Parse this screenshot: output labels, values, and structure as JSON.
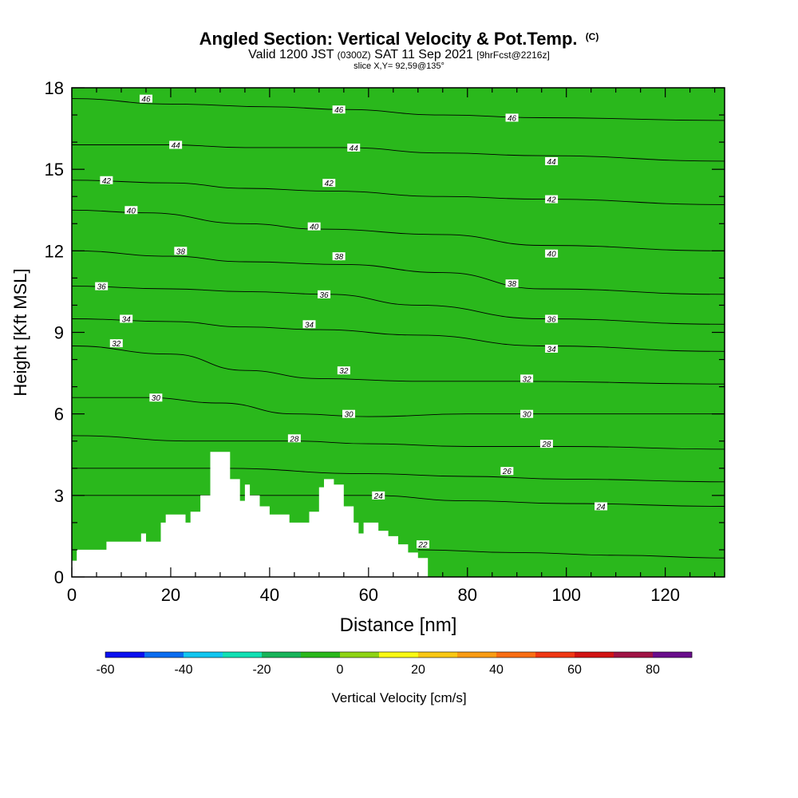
{
  "header": {
    "title": "Angled Section: Vertical Velocity & Pot.Temp.",
    "copyright": "(C)",
    "valid_prefix": "Valid 1200 JST",
    "valid_utc": "(0300Z)",
    "valid_date": "SAT 11 Sep 2021",
    "forecast": "[9hrFcst@2216z]",
    "slice": "slice X,Y= 92,59@135°"
  },
  "chart_data": {
    "type": "heatmap",
    "title": "Angled Section: Vertical Velocity & Pot.Temp.",
    "xlabel": "Distance [nm]",
    "ylabel": "Height [Kft MSL]",
    "xlim": [
      0,
      132
    ],
    "ylim": [
      0,
      18
    ],
    "x_ticks": [
      0,
      20,
      40,
      60,
      80,
      100,
      120
    ],
    "y_ticks": [
      0,
      3,
      6,
      9,
      12,
      15,
      18
    ],
    "colorbar": {
      "label": "Vertical Velocity [cm/s]",
      "tick_labels": [
        -60,
        -40,
        -20,
        0,
        20,
        40,
        60,
        80
      ],
      "levels": [
        -60,
        -50,
        -40,
        -30,
        -20,
        -10,
        0,
        10,
        20,
        30,
        40,
        50,
        60,
        70,
        80,
        90
      ],
      "colors": [
        "#0a10f0",
        "#0a6df0",
        "#12c6f0",
        "#12e0b4",
        "#18b45a",
        "#2ab81c",
        "#8ed414",
        "#fafa14",
        "#fac814",
        "#fa9c14",
        "#fa6e14",
        "#f03814",
        "#d21414",
        "#a01446",
        "#6a0e8c"
      ]
    },
    "theta_contours": [
      {
        "value": 22,
        "label": "22",
        "points": [
          [
            70,
            1.0
          ],
          [
            90,
            0.9
          ],
          [
            110,
            0.8
          ],
          [
            132,
            0.7
          ]
        ]
      },
      {
        "value": 24,
        "label": "24",
        "points": [
          [
            0,
            3.0
          ],
          [
            30,
            3.0
          ],
          [
            60,
            3.0
          ],
          [
            80,
            2.8
          ],
          [
            100,
            2.7
          ],
          [
            132,
            2.6
          ]
        ]
      },
      {
        "value": 26,
        "label": "26",
        "points": [
          [
            0,
            4.0
          ],
          [
            30,
            4.0
          ],
          [
            60,
            3.8
          ],
          [
            80,
            3.7
          ],
          [
            100,
            3.6
          ],
          [
            132,
            3.5
          ]
        ]
      },
      {
        "value": 28,
        "label": "28",
        "points": [
          [
            0,
            5.2
          ],
          [
            25,
            5.0
          ],
          [
            45,
            5.0
          ],
          [
            60,
            4.9
          ],
          [
            80,
            4.8
          ],
          [
            100,
            4.8
          ],
          [
            132,
            4.7
          ]
        ]
      },
      {
        "value": 30,
        "label": "30",
        "points": [
          [
            0,
            6.6
          ],
          [
            15,
            6.6
          ],
          [
            30,
            6.4
          ],
          [
            45,
            6.0
          ],
          [
            60,
            5.9
          ],
          [
            80,
            6.0
          ],
          [
            100,
            6.0
          ],
          [
            132,
            6.0
          ]
        ]
      },
      {
        "value": 32,
        "label": "32",
        "points": [
          [
            0,
            8.5
          ],
          [
            20,
            8.2
          ],
          [
            35,
            7.6
          ],
          [
            50,
            7.3
          ],
          [
            70,
            7.2
          ],
          [
            90,
            7.2
          ],
          [
            132,
            7.1
          ]
        ]
      },
      {
        "value": 34,
        "label": "34",
        "points": [
          [
            0,
            9.5
          ],
          [
            20,
            9.4
          ],
          [
            35,
            9.2
          ],
          [
            50,
            9.1
          ],
          [
            70,
            8.9
          ],
          [
            95,
            8.5
          ],
          [
            132,
            8.3
          ]
        ]
      },
      {
        "value": 36,
        "label": "36",
        "points": [
          [
            0,
            10.7
          ],
          [
            20,
            10.6
          ],
          [
            35,
            10.5
          ],
          [
            52,
            10.4
          ],
          [
            70,
            10.0
          ],
          [
            95,
            9.5
          ],
          [
            132,
            9.3
          ]
        ]
      },
      {
        "value": 38,
        "label": "38",
        "points": [
          [
            0,
            12.0
          ],
          [
            20,
            11.8
          ],
          [
            35,
            11.6
          ],
          [
            55,
            11.5
          ],
          [
            75,
            11.2
          ],
          [
            95,
            10.6
          ],
          [
            132,
            10.4
          ]
        ]
      },
      {
        "value": 40,
        "label": "40",
        "points": [
          [
            0,
            13.5
          ],
          [
            15,
            13.4
          ],
          [
            35,
            13.0
          ],
          [
            50,
            12.8
          ],
          [
            75,
            12.6
          ],
          [
            95,
            12.2
          ],
          [
            132,
            12.0
          ]
        ]
      },
      {
        "value": 42,
        "label": "42",
        "points": [
          [
            0,
            14.6
          ],
          [
            20,
            14.5
          ],
          [
            35,
            14.3
          ],
          [
            52,
            14.2
          ],
          [
            75,
            14.0
          ],
          [
            95,
            13.9
          ],
          [
            132,
            13.7
          ]
        ]
      },
      {
        "value": 44,
        "label": "44",
        "points": [
          [
            0,
            15.9
          ],
          [
            20,
            15.9
          ],
          [
            35,
            15.8
          ],
          [
            55,
            15.8
          ],
          [
            75,
            15.6
          ],
          [
            95,
            15.5
          ],
          [
            132,
            15.3
          ]
        ]
      },
      {
        "value": 46,
        "label": "46",
        "points": [
          [
            0,
            17.6
          ],
          [
            20,
            17.4
          ],
          [
            40,
            17.3
          ],
          [
            55,
            17.2
          ],
          [
            75,
            17.0
          ],
          [
            95,
            16.9
          ],
          [
            132,
            16.8
          ]
        ]
      }
    ],
    "theta_labels": [
      {
        "text": "46",
        "x": 15,
        "y": 17.6
      },
      {
        "text": "46",
        "x": 54,
        "y": 17.2
      },
      {
        "text": "46",
        "x": 89,
        "y": 16.9
      },
      {
        "text": "44",
        "x": 21,
        "y": 15.9
      },
      {
        "text": "44",
        "x": 57,
        "y": 15.8
      },
      {
        "text": "44",
        "x": 97,
        "y": 15.3
      },
      {
        "text": "42",
        "x": 7,
        "y": 14.6
      },
      {
        "text": "42",
        "x": 52,
        "y": 14.5
      },
      {
        "text": "42",
        "x": 97,
        "y": 13.9
      },
      {
        "text": "40",
        "x": 12,
        "y": 13.5
      },
      {
        "text": "40",
        "x": 49,
        "y": 12.9
      },
      {
        "text": "40",
        "x": 97,
        "y": 11.9
      },
      {
        "text": "38",
        "x": 22,
        "y": 12.0
      },
      {
        "text": "38",
        "x": 54,
        "y": 11.8
      },
      {
        "text": "38",
        "x": 89,
        "y": 10.8
      },
      {
        "text": "36",
        "x": 6,
        "y": 10.7
      },
      {
        "text": "36",
        "x": 51,
        "y": 10.4
      },
      {
        "text": "36",
        "x": 97,
        "y": 9.5
      },
      {
        "text": "34",
        "x": 11,
        "y": 9.5
      },
      {
        "text": "34",
        "x": 48,
        "y": 9.3
      },
      {
        "text": "34",
        "x": 97,
        "y": 8.4
      },
      {
        "text": "32",
        "x": 9,
        "y": 8.6
      },
      {
        "text": "32",
        "x": 55,
        "y": 7.6
      },
      {
        "text": "32",
        "x": 92,
        "y": 7.3
      },
      {
        "text": "30",
        "x": 17,
        "y": 6.6
      },
      {
        "text": "30",
        "x": 56,
        "y": 6.0
      },
      {
        "text": "30",
        "x": 92,
        "y": 6.0
      },
      {
        "text": "28",
        "x": 45,
        "y": 5.1
      },
      {
        "text": "28",
        "x": 96,
        "y": 4.9
      },
      {
        "text": "26",
        "x": 88,
        "y": 3.9
      },
      {
        "text": "24",
        "x": 62,
        "y": 3.0
      },
      {
        "text": "24",
        "x": 107,
        "y": 2.6
      },
      {
        "text": "22",
        "x": 71,
        "y": 1.2
      }
    ],
    "terrain": [
      [
        0,
        0.6
      ],
      [
        1,
        1.0
      ],
      [
        6,
        1.0
      ],
      [
        7,
        1.3
      ],
      [
        13,
        1.3
      ],
      [
        14,
        1.6
      ],
      [
        15,
        1.3
      ],
      [
        17,
        1.3
      ],
      [
        18,
        2.0
      ],
      [
        19,
        2.3
      ],
      [
        22,
        2.3
      ],
      [
        23,
        2.0
      ],
      [
        24,
        2.4
      ],
      [
        26,
        3.0
      ],
      [
        28,
        4.6
      ],
      [
        31,
        4.6
      ],
      [
        32,
        3.6
      ],
      [
        34,
        2.8
      ],
      [
        35,
        3.4
      ],
      [
        36,
        3.0
      ],
      [
        38,
        2.6
      ],
      [
        40,
        2.3
      ],
      [
        42,
        2.3
      ],
      [
        44,
        2.0
      ],
      [
        46,
        2.0
      ],
      [
        48,
        2.4
      ],
      [
        50,
        3.3
      ],
      [
        51,
        3.6
      ],
      [
        53,
        3.4
      ],
      [
        55,
        2.6
      ],
      [
        57,
        2.0
      ],
      [
        58,
        1.6
      ],
      [
        59,
        2.0
      ],
      [
        60,
        2.0
      ],
      [
        62,
        1.7
      ],
      [
        64,
        1.5
      ],
      [
        66,
        1.2
      ],
      [
        68,
        0.9
      ],
      [
        70,
        0.7
      ],
      [
        72,
        0.3
      ]
    ]
  }
}
